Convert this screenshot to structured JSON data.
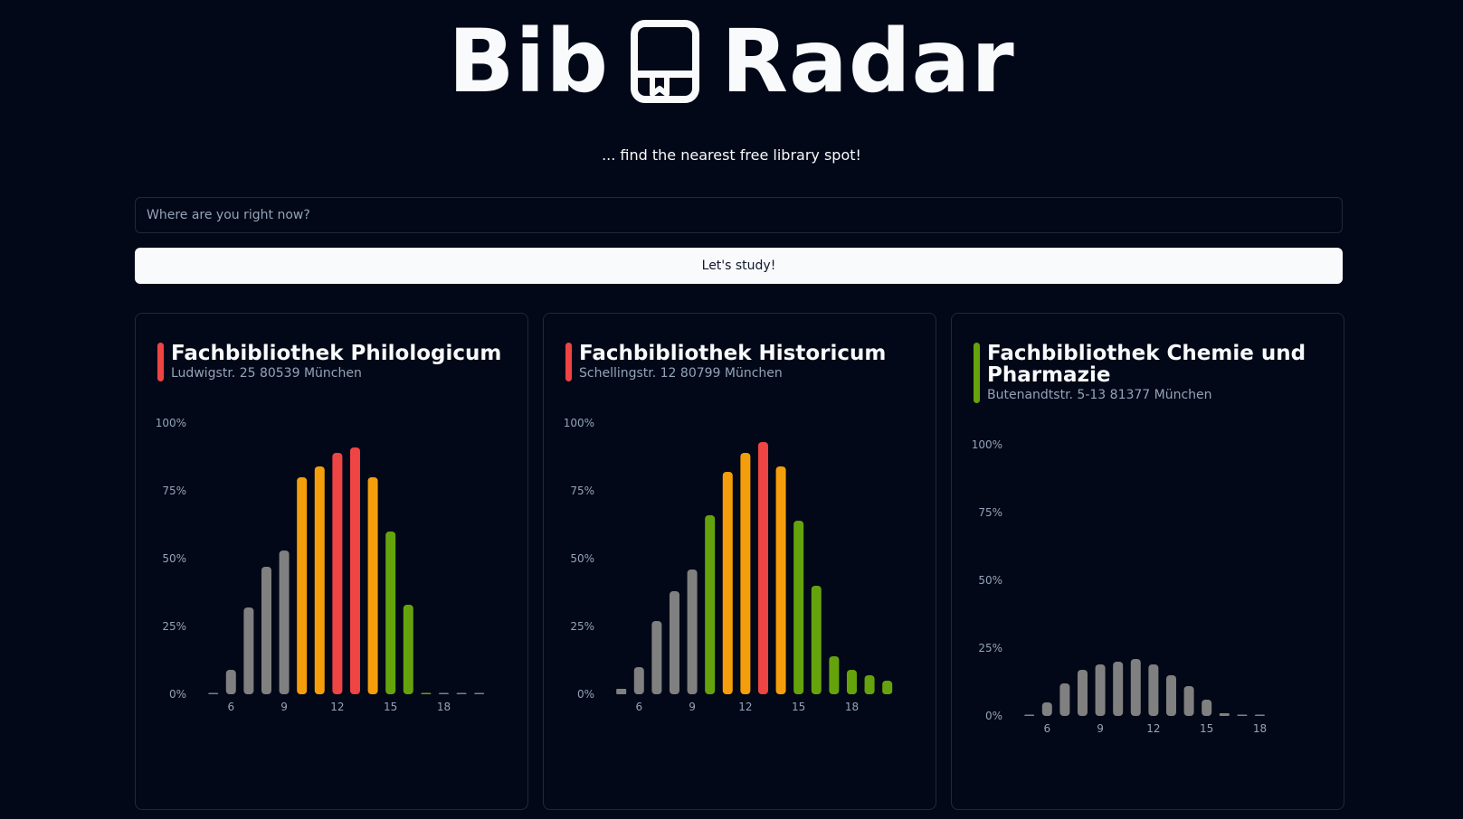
{
  "app": {
    "title_left": "Bib",
    "title_right": "Radar",
    "logo_icon": "book-icon",
    "tagline": "... find the nearest free library spot!"
  },
  "search": {
    "placeholder": "Where are you right now?",
    "value": ""
  },
  "cta": {
    "label": "Let's study!"
  },
  "colors": {
    "background": "#020817",
    "card_border": "#1e293b",
    "past": "#808080",
    "free": "#65a30d",
    "busy": "#f59e0b",
    "full": "#ef4444",
    "axis_text": "#94a3b8"
  },
  "libraries": [
    {
      "name": "Fachbibliothek Philologicum",
      "address": "Ludwigstr. 25 80539 München",
      "status_color": "#ef4444",
      "chart_data": {
        "type": "bar",
        "x_ticks": [
          6,
          9,
          12,
          15,
          18
        ],
        "y_ticks": [
          "0%",
          "25%",
          "50%",
          "75%",
          "100%"
        ],
        "ylim": [
          0,
          100
        ],
        "hours": [
          5,
          6,
          7,
          8,
          9,
          10,
          11,
          12,
          13,
          14,
          15,
          16,
          17,
          18,
          19,
          20
        ],
        "values": [
          0,
          9,
          32,
          47,
          53,
          80,
          84,
          89,
          91,
          80,
          60,
          33,
          0,
          0,
          0,
          0
        ],
        "status": [
          "past",
          "past",
          "past",
          "past",
          "past",
          "busy",
          "busy",
          "full",
          "full",
          "busy",
          "free",
          "free",
          "free",
          "past",
          "past",
          "past"
        ]
      }
    },
    {
      "name": "Fachbibliothek Historicum",
      "address": "Schellingstr. 12 80799 München",
      "status_color": "#ef4444",
      "chart_data": {
        "type": "bar",
        "x_ticks": [
          6,
          9,
          12,
          15,
          18
        ],
        "y_ticks": [
          "0%",
          "25%",
          "50%",
          "75%",
          "100%"
        ],
        "ylim": [
          0,
          100
        ],
        "hours": [
          5,
          6,
          7,
          8,
          9,
          10,
          11,
          12,
          13,
          14,
          15,
          16,
          17,
          18,
          19,
          20
        ],
        "values": [
          2,
          10,
          27,
          38,
          46,
          66,
          82,
          89,
          93,
          84,
          64,
          40,
          14,
          9,
          7,
          5
        ],
        "status": [
          "past",
          "past",
          "past",
          "past",
          "past",
          "free",
          "busy",
          "busy",
          "full",
          "busy",
          "free",
          "free",
          "free",
          "free",
          "free",
          "free"
        ],
        "forecast_overlay": [
          0,
          0,
          0,
          0,
          0,
          0,
          0,
          0,
          0,
          0,
          0,
          0,
          0,
          5,
          3,
          2
        ]
      }
    },
    {
      "name": "Fachbibliothek Chemie und Pharmazie",
      "address": "Butenandtstr. 5-13 81377 München",
      "status_color": "#65a30d",
      "chart_data": {
        "type": "bar",
        "x_ticks": [
          6,
          9,
          12,
          15,
          18
        ],
        "y_ticks": [
          "0%",
          "25%",
          "50%",
          "75%",
          "100%"
        ],
        "ylim": [
          0,
          100
        ],
        "hours": [
          5,
          6,
          7,
          8,
          9,
          10,
          11,
          12,
          13,
          14,
          15,
          16,
          17,
          18
        ],
        "values": [
          0,
          5,
          12,
          17,
          19,
          20,
          21,
          19,
          15,
          11,
          6,
          1,
          0,
          0
        ],
        "status": [
          "past",
          "past",
          "past",
          "past",
          "past",
          "past",
          "past",
          "past",
          "past",
          "past",
          "past",
          "past",
          "past",
          "past"
        ]
      }
    }
  ]
}
